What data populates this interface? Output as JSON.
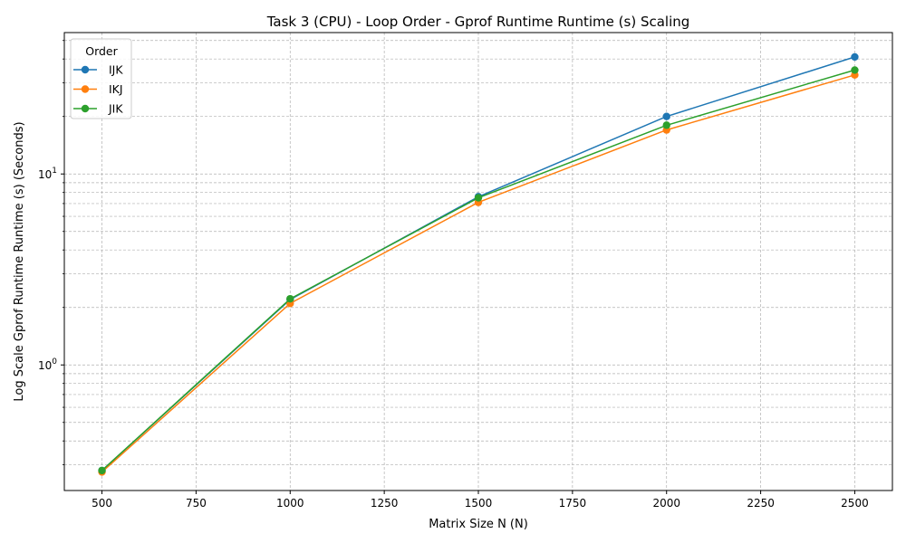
{
  "chart_data": {
    "type": "line",
    "title": "Task 3 (CPU) - Loop Order - Gprof Runtime Runtime (s) Scaling",
    "xlabel": "Matrix Size N (N)",
    "ylabel": "Log Scale Gprof Runtime Runtime (s) (Seconds)",
    "x": [
      500,
      1000,
      1500,
      2000,
      2500
    ],
    "xlim": [
      400,
      2600
    ],
    "xticks": [
      500,
      750,
      1000,
      1250,
      1500,
      1750,
      2000,
      2250,
      2500
    ],
    "yscale": "log",
    "ylim": [
      0.22,
      55
    ],
    "yticks_major": [
      1,
      10
    ],
    "ytick_labels": [
      "10^0",
      "10^1"
    ],
    "grid": true,
    "legend": {
      "title": "Order",
      "placement": "top-left"
    },
    "series": [
      {
        "name": "IJK",
        "color": "#1f77b4",
        "values": [
          0.28,
          2.2,
          7.6,
          20.0,
          41.0
        ]
      },
      {
        "name": "IKJ",
        "color": "#ff7f0e",
        "values": [
          0.275,
          2.1,
          7.1,
          17.0,
          33.0
        ]
      },
      {
        "name": "JIK",
        "color": "#2ca02c",
        "values": [
          0.28,
          2.22,
          7.5,
          18.0,
          35.0
        ]
      }
    ]
  }
}
